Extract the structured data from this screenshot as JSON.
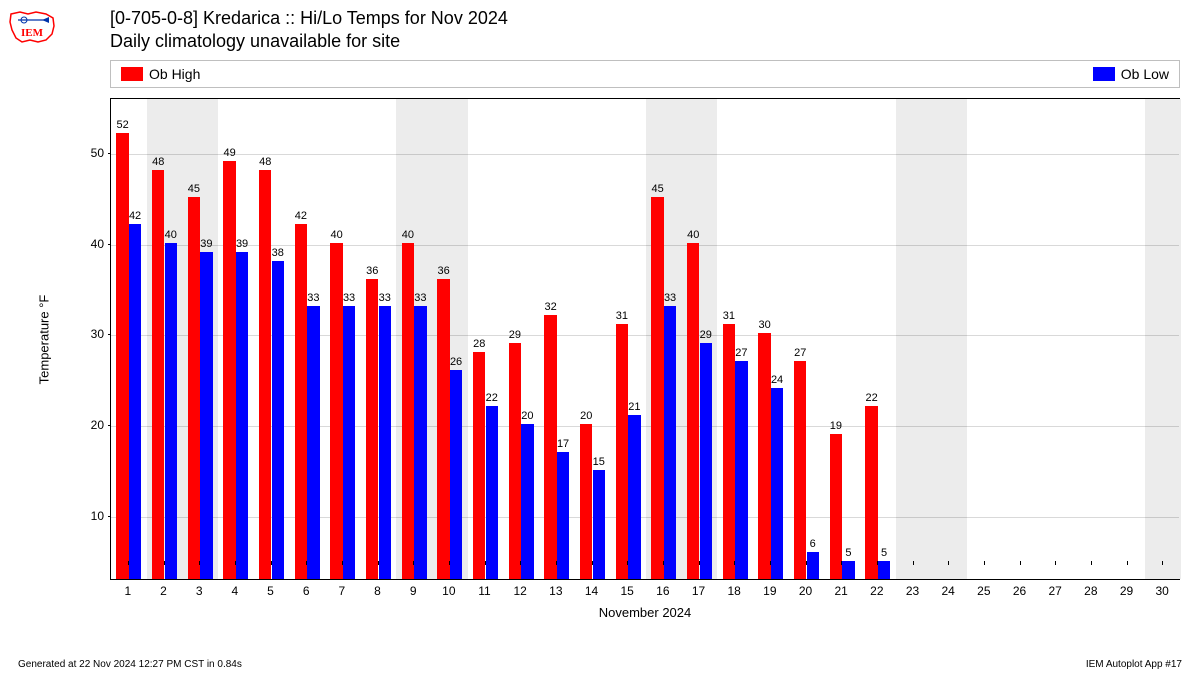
{
  "header": {
    "title": "[0-705-0-8] Kredarica :: Hi/Lo Temps for Nov 2024",
    "subtitle": "Daily climatology unavailable for site"
  },
  "legend": {
    "high": {
      "label": "Ob High",
      "color": "#ff0000"
    },
    "low": {
      "label": "Ob Low",
      "color": "#0000ff"
    }
  },
  "chart": {
    "type": "bar",
    "y_axis": {
      "label": "Temperature °F",
      "min": 3,
      "max": 56,
      "ticks": [
        10,
        20,
        30,
        40,
        50
      ],
      "tick_fontsize": 12,
      "label_fontsize": 13
    },
    "x_axis": {
      "label": "November 2024",
      "days": 30,
      "label_fontsize": 13,
      "tick_fontsize": 12
    },
    "series": {
      "high_color": "#ff0000",
      "low_color": "#0000ff",
      "bar_width_ratio": 0.35,
      "label_fontsize": 11
    },
    "weekend_band_color": "#ececec",
    "grid_color": "rgba(0,0,0,0.15)",
    "background_color": "#ffffff",
    "weekends": [
      [
        2,
        3
      ],
      [
        9,
        10
      ],
      [
        16,
        17
      ],
      [
        23,
        24
      ],
      [
        30,
        30
      ]
    ],
    "data": [
      {
        "day": 1,
        "high": 52,
        "low": 42
      },
      {
        "day": 2,
        "high": 48,
        "low": 40
      },
      {
        "day": 3,
        "high": 45,
        "low": 39
      },
      {
        "day": 4,
        "high": 49,
        "low": 39
      },
      {
        "day": 5,
        "high": 48,
        "low": 38
      },
      {
        "day": 6,
        "high": 42,
        "low": 33
      },
      {
        "day": 7,
        "high": 40,
        "low": 33
      },
      {
        "day": 8,
        "high": 36,
        "low": 33
      },
      {
        "day": 9,
        "high": 40,
        "low": 33
      },
      {
        "day": 10,
        "high": 36,
        "low": 26
      },
      {
        "day": 11,
        "high": 28,
        "low": 22
      },
      {
        "day": 12,
        "high": 29,
        "low": 20
      },
      {
        "day": 13,
        "high": 32,
        "low": 17
      },
      {
        "day": 14,
        "high": 20,
        "low": 15
      },
      {
        "day": 15,
        "high": 31,
        "low": 21
      },
      {
        "day": 16,
        "high": 45,
        "low": 33
      },
      {
        "day": 17,
        "high": 40,
        "low": 29
      },
      {
        "day": 18,
        "high": 31,
        "low": 27
      },
      {
        "day": 19,
        "high": 30,
        "low": 24
      },
      {
        "day": 20,
        "high": 27,
        "low": 6
      },
      {
        "day": 21,
        "high": 19,
        "low": 5
      },
      {
        "day": 22,
        "high": 22,
        "low": 5
      }
    ]
  },
  "footer": {
    "left": "Generated at 22 Nov 2024 12:27 PM CST in 0.84s",
    "right": "IEM Autoplot App #17"
  },
  "logo": {
    "outline_color": "#ff0000",
    "accent_color": "#0033aa",
    "text": "IEM"
  }
}
